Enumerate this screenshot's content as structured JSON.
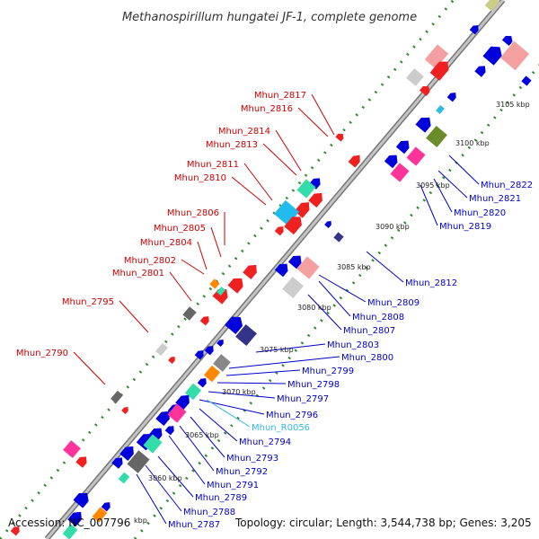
{
  "title": "Methanospirillum hungatei JF-1, complete genome",
  "footer": {
    "accession": "Accession: NC_007796",
    "kbp_unit": "kbp",
    "summary": "Topology: circular; Length: 3,544,738 bp; Genes: 3,205"
  },
  "colors": {
    "backbone": "#999999",
    "dots": "#2e8b2e",
    "label_red": "#cc0000",
    "label_blue": "#0000cc",
    "label_cyan": "#33bbdd"
  },
  "ticks": [
    "3060 kbp",
    "3065 kbp",
    "3070 kbp",
    "3075 kbp",
    "3080 kbp",
    "3085 kbp",
    "3090 kbp",
    "3095 kbp",
    "3100 kbp",
    "3105 kbp"
  ],
  "left_labels": [
    "Mhun_2817",
    "Mhun_2816",
    "Mhun_2814",
    "Mhun_2813",
    "Mhun_2811",
    "Mhun_2810",
    "Mhun_2806",
    "Mhun_2805",
    "Mhun_2804",
    "Mhun_2802",
    "Mhun_2801",
    "Mhun_2795",
    "Mhun_2790"
  ],
  "right_labels": [
    "Mhun_2822",
    "Mhun_2821",
    "Mhun_2820",
    "Mhun_2819",
    "Mhun_2812",
    "Mhun_2809",
    "Mhun_2808",
    "Mhun_2807",
    "Mhun_2803",
    "Mhun_2800",
    "Mhun_2799",
    "Mhun_2798",
    "Mhun_2797",
    "Mhun_2796",
    "Mhun_R0056",
    "Mhun_2794",
    "Mhun_2793",
    "Mhun_2792",
    "Mhun_2791",
    "Mhun_2789",
    "Mhun_2788",
    "Mhun_2787"
  ]
}
